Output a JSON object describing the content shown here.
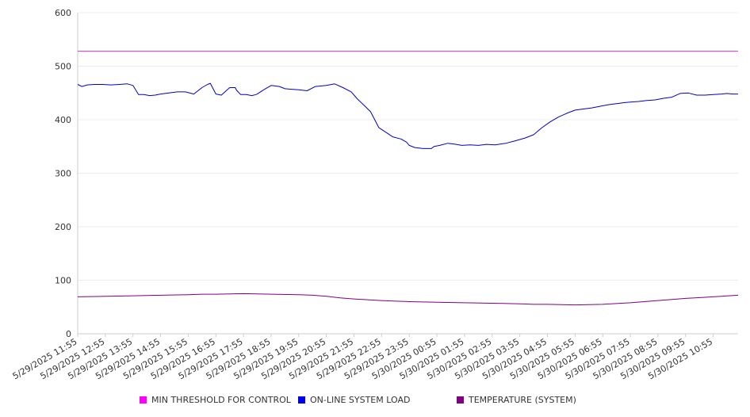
{
  "chart_data": {
    "type": "line",
    "title": "",
    "xlabel": "",
    "ylabel": "",
    "ylim": [
      0,
      600
    ],
    "yticks": [
      0,
      100,
      200,
      300,
      400,
      500,
      600
    ],
    "grid": true,
    "legend_position": "bottom",
    "x_tick_labels": [
      "5/29/2025 11:55",
      "5/29/2025 12:55",
      "5/29/2025 13:55",
      "5/29/2025 14:55",
      "5/29/2025 15:55",
      "5/29/2025 16:55",
      "5/29/2025 17:55",
      "5/29/2025 18:55",
      "5/29/2025 19:55",
      "5/29/2025 20:55",
      "5/29/2025 21:55",
      "5/29/2025 22:55",
      "5/29/2025 23:55",
      "5/30/2025 00:55",
      "5/30/2025 01:55",
      "5/30/2025 02:55",
      "5/30/2025 03:55",
      "5/30/2025 04:55",
      "5/30/2025 05:55",
      "5/30/2025 06:55",
      "5/30/2025 07:55",
      "5/30/2025 08:55",
      "5/30/2025 09:55",
      "5/30/2025 10:55"
    ],
    "x_range_hours": [
      0,
      23.9
    ],
    "series": [
      {
        "name": "MIN THRESHOLD FOR CONTROL",
        "color": "#cc33cc",
        "legend_color": "#ff00ff",
        "x": [
          0,
          23.9
        ],
        "values": [
          528,
          528
        ]
      },
      {
        "name": "ON-LINE SYSTEM LOAD",
        "color": "#0000cc",
        "legend_color": "#0000ee",
        "x": [
          0,
          0.15,
          0.35,
          0.6,
          0.9,
          1.2,
          1.5,
          1.8,
          2.0,
          2.2,
          2.4,
          2.6,
          2.8,
          3.0,
          3.3,
          3.6,
          3.9,
          4.2,
          4.5,
          4.7,
          4.8,
          5.0,
          5.2,
          5.5,
          5.7,
          5.75,
          5.9,
          6.1,
          6.3,
          6.45,
          6.5,
          6.7,
          7.0,
          7.3,
          7.5,
          7.7,
          8.0,
          8.3,
          8.6,
          9.0,
          9.3,
          9.6,
          9.9,
          10.1,
          10.4,
          10.6,
          10.9,
          11.2,
          11.4,
          11.7,
          11.9,
          12.0,
          12.2,
          12.5,
          12.8,
          12.9,
          13.1,
          13.4,
          13.7,
          13.9,
          14.2,
          14.5,
          14.8,
          15.1,
          15.5,
          15.8,
          16.2,
          16.5,
          16.8,
          17.1,
          17.4,
          17.7,
          18.0,
          18.3,
          18.6,
          18.9,
          19.2,
          19.5,
          19.8,
          20.0,
          20.3,
          20.6,
          20.9,
          21.2,
          21.5,
          21.8,
          22.1,
          22.4,
          22.7,
          23.0,
          23.3,
          23.5,
          23.7,
          23.9
        ],
        "values": [
          466,
          462,
          465,
          466,
          466,
          465,
          466,
          467,
          464,
          447,
          447,
          445,
          446,
          448,
          450,
          452,
          452,
          448,
          460,
          466,
          468,
          448,
          446,
          460,
          460,
          455,
          447,
          447,
          445,
          447,
          448,
          455,
          464,
          462,
          458,
          457,
          456,
          454,
          462,
          464,
          467,
          460,
          452,
          440,
          425,
          415,
          385,
          375,
          368,
          364,
          358,
          352,
          348,
          346,
          346,
          350,
          352,
          356,
          354,
          352,
          353,
          352,
          354,
          353,
          356,
          360,
          366,
          372,
          385,
          396,
          405,
          412,
          418,
          420,
          422,
          425,
          428,
          430,
          432,
          433,
          434,
          436,
          437,
          440,
          442,
          449,
          450,
          446,
          446,
          447,
          448,
          449,
          448,
          448
        ]
      },
      {
        "name": "TEMPERATURE (SYSTEM)",
        "color": "#800080",
        "legend_color": "#800080",
        "x": [
          0,
          1,
          2,
          3,
          4,
          4.5,
          5,
          6,
          7,
          8,
          8.5,
          9,
          9.5,
          10,
          11,
          12,
          13,
          14,
          15,
          16,
          16.5,
          17,
          18,
          19,
          20,
          21,
          22,
          23,
          23.9
        ],
        "values": [
          69,
          70,
          71,
          72,
          73,
          74,
          74,
          75,
          74,
          73,
          72,
          70,
          67,
          65,
          62,
          60,
          59,
          58,
          57,
          56,
          55,
          55,
          54,
          55,
          58,
          62,
          66,
          69,
          72
        ]
      }
    ]
  }
}
